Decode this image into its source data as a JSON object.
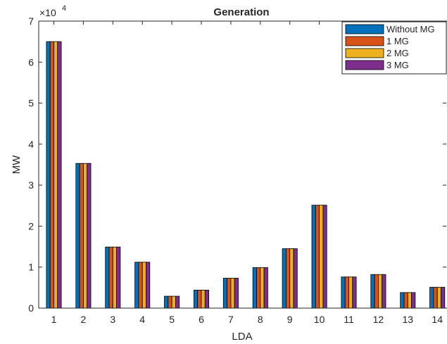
{
  "chart_data": {
    "type": "bar",
    "title": "Generation",
    "xlabel": "LDA",
    "ylabel": "MW",
    "y_exponent_label": "×10",
    "y_exponent_power": "4",
    "ylim": [
      0,
      70000
    ],
    "yticks": [
      0,
      10000,
      20000,
      30000,
      40000,
      50000,
      60000,
      70000
    ],
    "ytick_labels": [
      "0",
      "1",
      "2",
      "3",
      "4",
      "5",
      "6",
      "7"
    ],
    "categories": [
      "1",
      "2",
      "3",
      "4",
      "5",
      "6",
      "7",
      "8",
      "9",
      "10",
      "11",
      "12",
      "13",
      "14"
    ],
    "series": [
      {
        "name": "Without MG",
        "color": "#0072BD",
        "values": [
          65000,
          35300,
          14900,
          11200,
          2900,
          4400,
          7300,
          9900,
          14500,
          25100,
          7600,
          8200,
          3800,
          5100
        ]
      },
      {
        "name": "1 MG",
        "color": "#D95319",
        "values": [
          65000,
          35300,
          14900,
          11200,
          2900,
          4400,
          7300,
          9900,
          14500,
          25100,
          7600,
          8200,
          3800,
          5100
        ]
      },
      {
        "name": "2 MG",
        "color": "#EDB120",
        "values": [
          65000,
          35300,
          14900,
          11200,
          2900,
          4400,
          7300,
          9900,
          14500,
          25100,
          7600,
          8200,
          3800,
          5100
        ]
      },
      {
        "name": "3 MG",
        "color": "#7E2F8E",
        "values": [
          65000,
          35300,
          14900,
          11200,
          2900,
          4400,
          7300,
          9900,
          14500,
          25100,
          7600,
          8200,
          3800,
          5100
        ]
      }
    ],
    "grid": false,
    "legend_position": "top-right"
  }
}
